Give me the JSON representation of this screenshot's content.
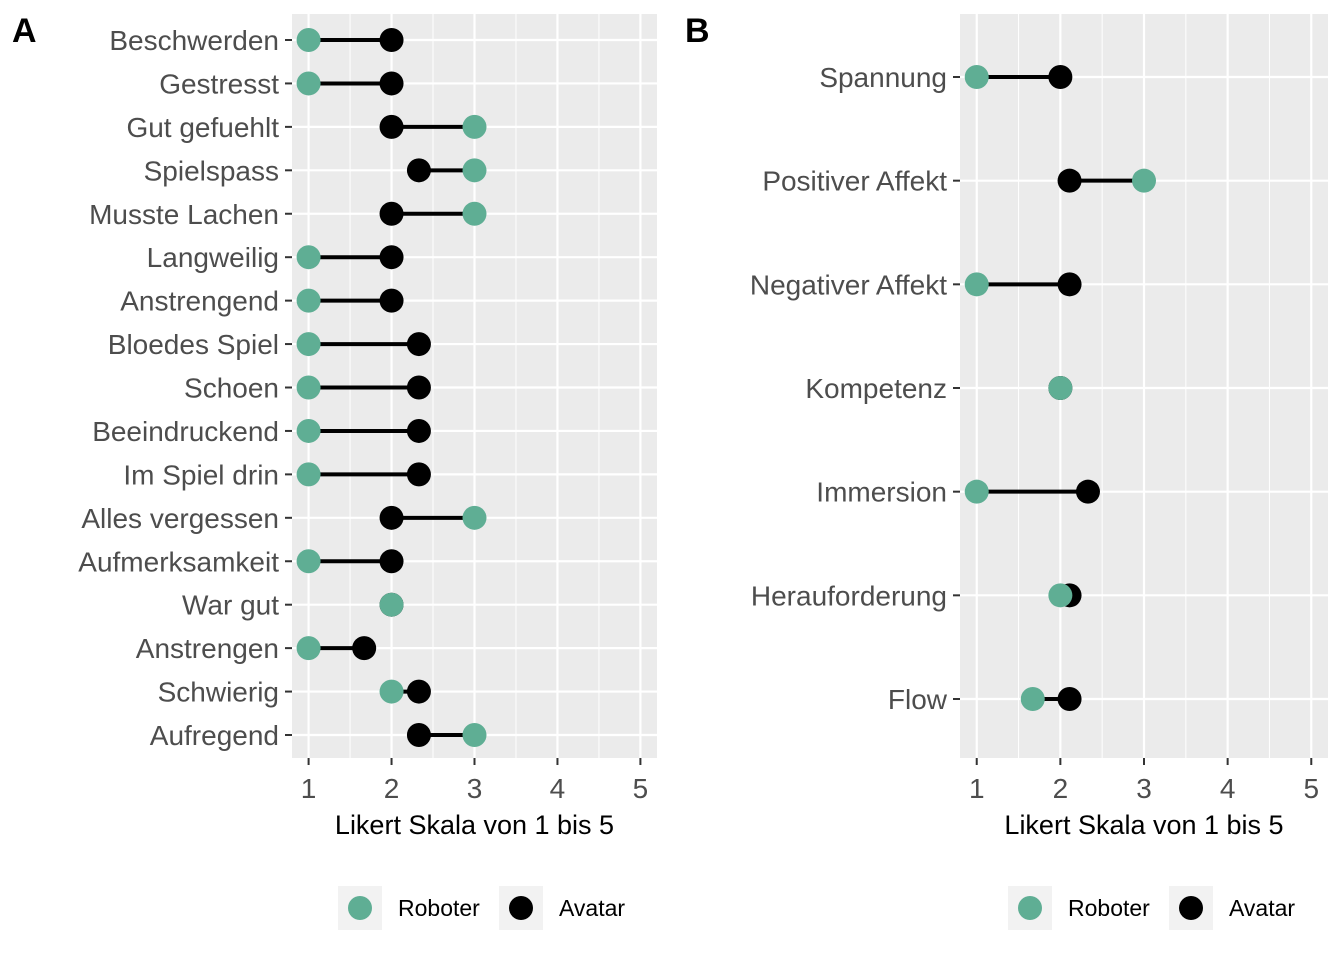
{
  "colors": {
    "roboter": "#5fae94",
    "avatar": "#000000",
    "panel_bg": "#ebebeb",
    "grid": "#ffffff",
    "tick_text": "#4d4d4d"
  },
  "chart_data": [
    {
      "type": "dumbbell",
      "panel_tag": "A",
      "xlabel": "Likert Skala von 1 bis 5",
      "xlim": [
        0.8,
        5.2
      ],
      "xticks": [
        "1",
        "2",
        "3",
        "4",
        "5"
      ],
      "grid": true,
      "legend_position": "bottom",
      "legend": [
        {
          "name": "Roboter",
          "color": "#5fae94"
        },
        {
          "name": "Avatar",
          "color": "#000000"
        }
      ],
      "categories": [
        "Beschwerden",
        "Gestresst",
        "Gut gefuehlt",
        "Spielspass",
        "Musste Lachen",
        "Langweilig",
        "Anstrengend",
        "Bloedes Spiel",
        "Schoen",
        "Beeindruckend",
        "Im Spiel drin",
        "Alles vergessen",
        "Aufmerksamkeit",
        "War gut",
        "Anstrengen",
        "Schwierig",
        "Aufregend"
      ],
      "series": [
        {
          "name": "Roboter",
          "values": [
            1,
            1,
            3,
            3,
            3,
            1,
            1,
            1,
            1,
            1,
            1,
            3,
            1,
            2,
            1,
            2,
            3
          ]
        },
        {
          "name": "Avatar",
          "values": [
            2,
            2,
            2,
            2.33,
            2,
            2,
            2,
            2.33,
            2.33,
            2.33,
            2.33,
            2,
            2,
            2,
            1.67,
            2.33,
            2.33
          ]
        }
      ]
    },
    {
      "type": "dumbbell",
      "panel_tag": "B",
      "xlabel": "Likert Skala von 1 bis 5",
      "xlim": [
        0.8,
        5.2
      ],
      "xticks": [
        "1",
        "2",
        "3",
        "4",
        "5"
      ],
      "grid": true,
      "legend_position": "bottom",
      "legend": [
        {
          "name": "Roboter",
          "color": "#5fae94"
        },
        {
          "name": "Avatar",
          "color": "#000000"
        }
      ],
      "categories": [
        "Spannung",
        "Positiver Affekt",
        "Negativer Affekt",
        "Kompetenz",
        "Immersion",
        "Herauforderung",
        "Flow"
      ],
      "series": [
        {
          "name": "Roboter",
          "values": [
            1,
            3,
            1,
            2,
            1,
            2,
            1.67
          ]
        },
        {
          "name": "Avatar",
          "values": [
            2,
            2.11,
            2.11,
            2,
            2.33,
            2.11,
            2.11
          ]
        }
      ]
    }
  ]
}
